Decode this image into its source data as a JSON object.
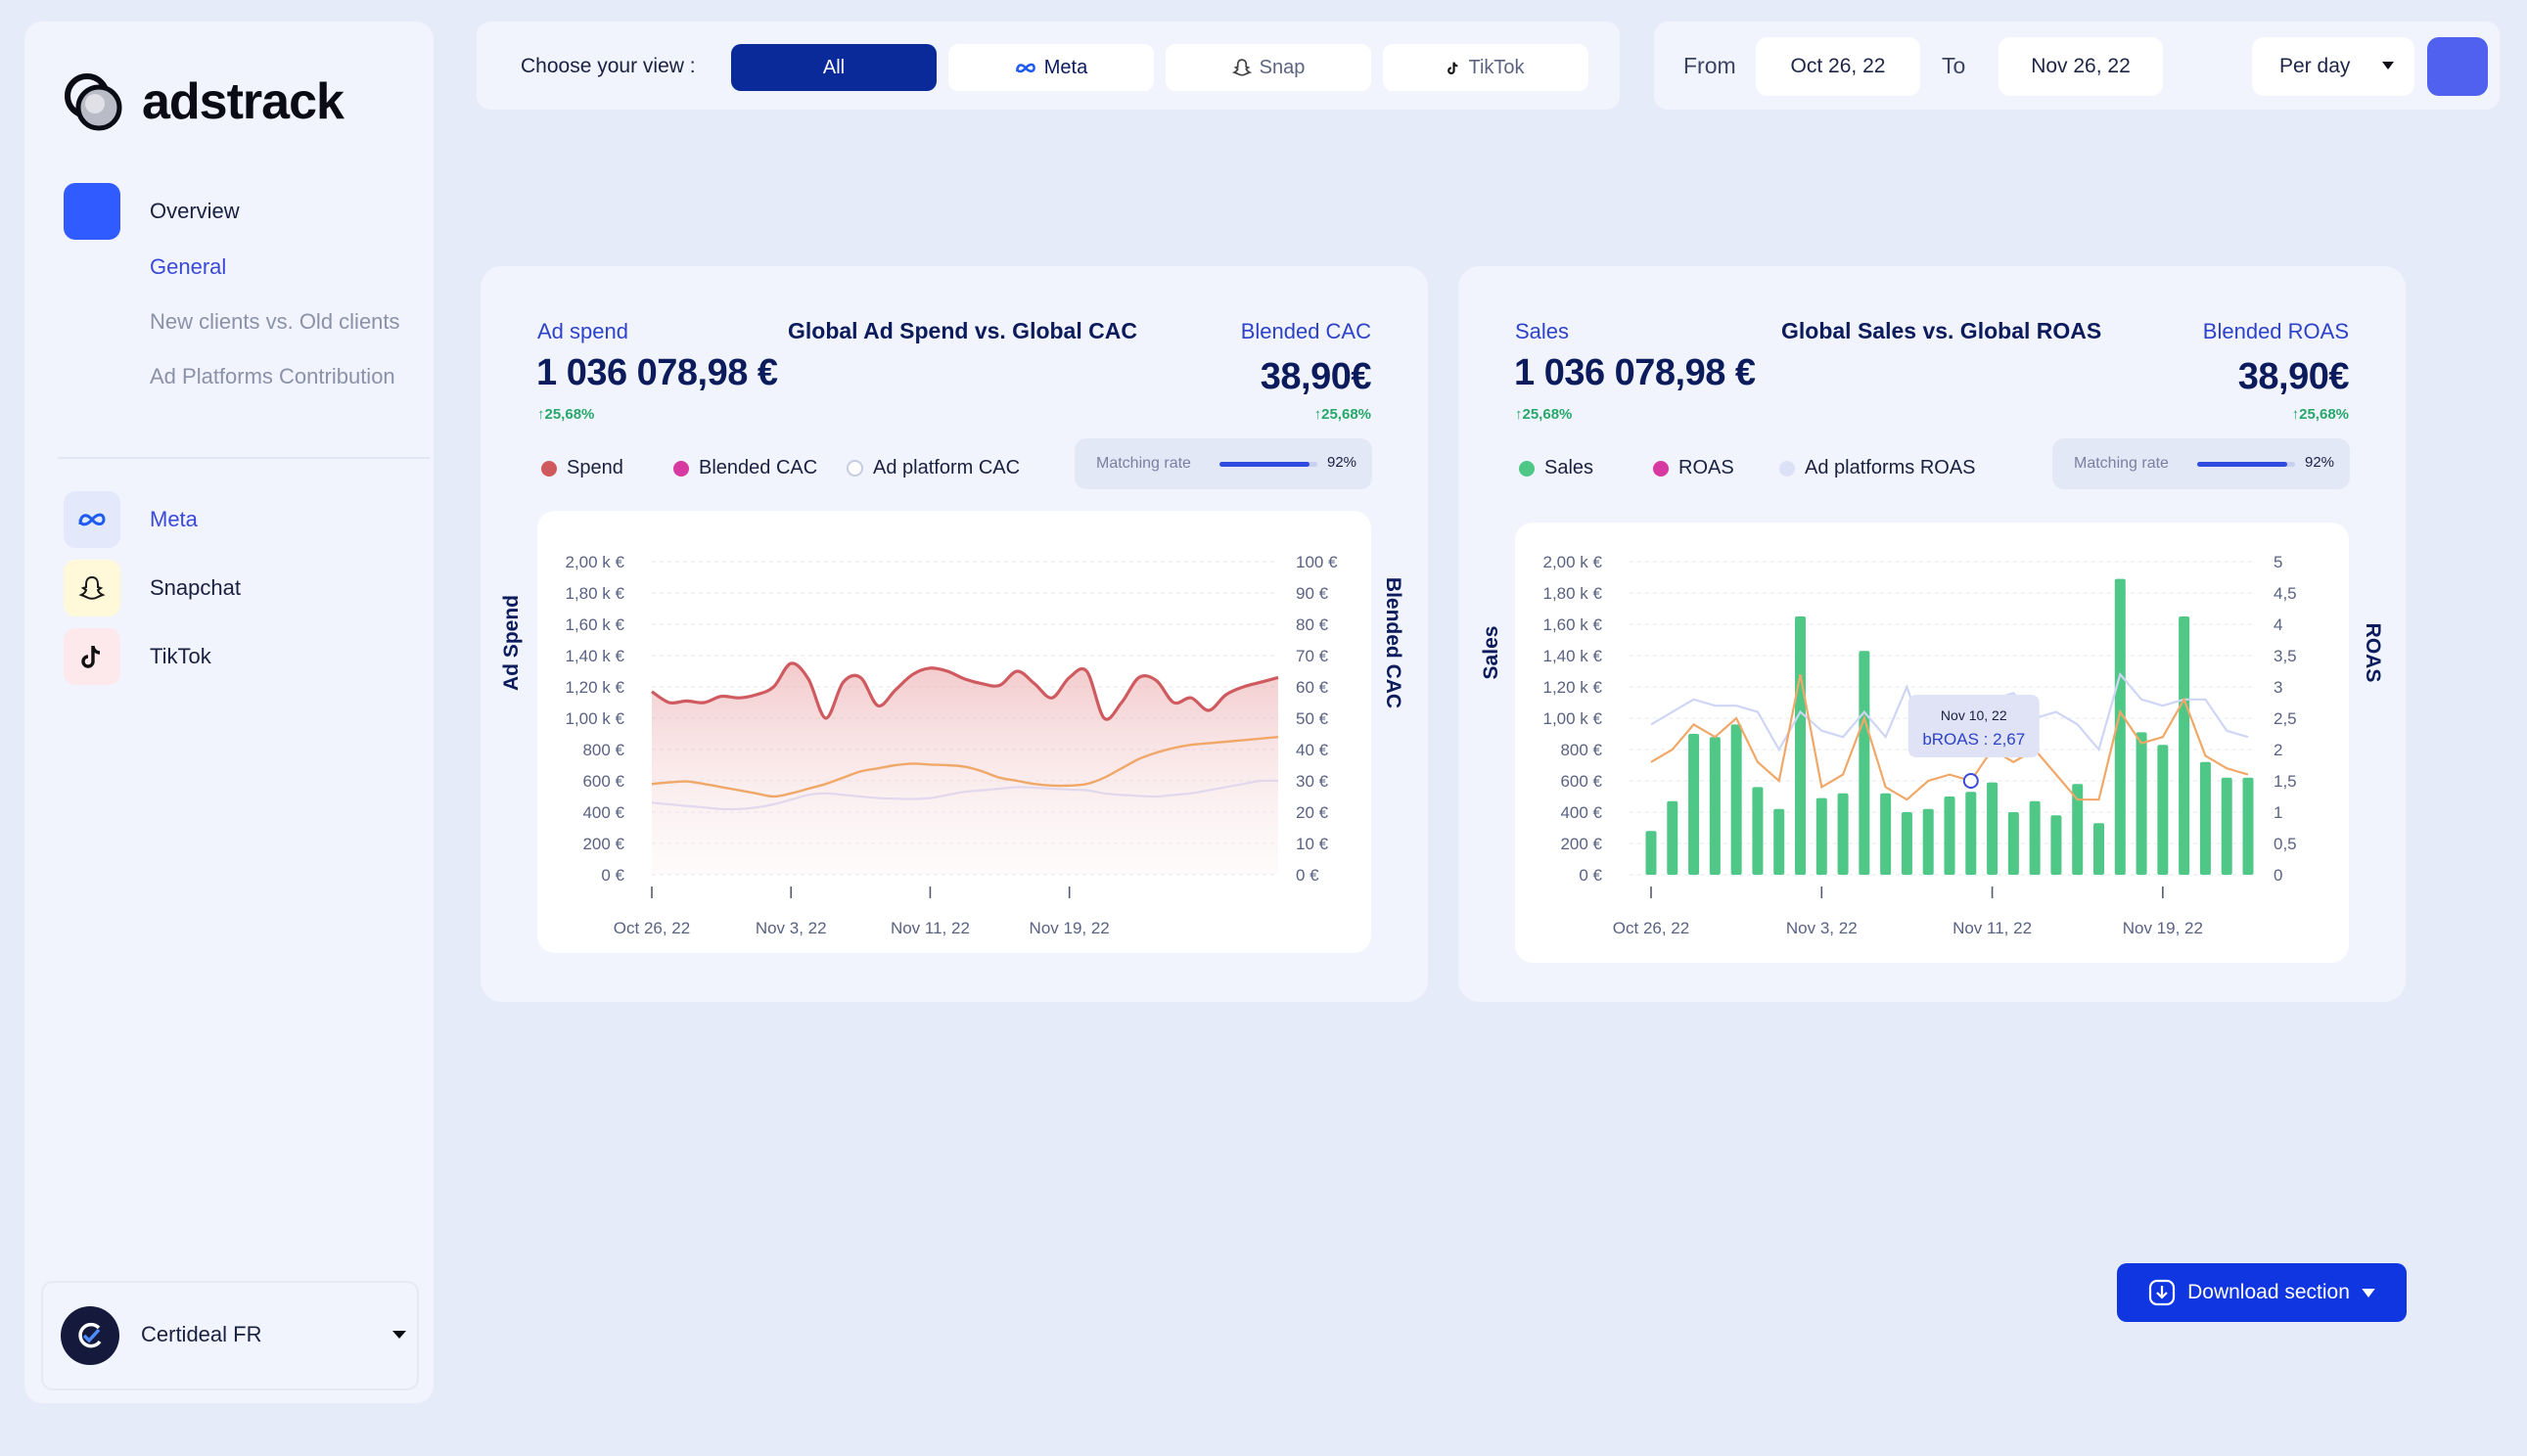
{
  "brand": {
    "name": "adstrack"
  },
  "sidebar": {
    "overview_label": "Overview",
    "sub_items": [
      "General",
      "New clients vs. Old clients",
      "Ad Platforms Contribution"
    ],
    "platforms": [
      {
        "label": "Meta",
        "icon": "meta-icon"
      },
      {
        "label": "Snapchat",
        "icon": "snapchat-icon"
      },
      {
        "label": "TikTok",
        "icon": "tiktok-icon"
      }
    ],
    "account": {
      "name": "Certideal FR"
    }
  },
  "viewbar": {
    "label": "Choose your view :",
    "options": [
      "All",
      "Meta",
      "Snap",
      "TikTok"
    ],
    "selected": "All"
  },
  "datebar": {
    "from_label": "From",
    "from_value": "Oct 26, 22",
    "to_label": "To",
    "to_value": "Nov 26, 22",
    "granularity": "Per day"
  },
  "cards": {
    "left": {
      "left_label": "Ad spend",
      "left_value": "1 036 078,98 €",
      "left_delta": "25,68%",
      "title": "Global Ad Spend vs. Global CAC",
      "right_label": "Blended CAC",
      "right_value": "38,90€",
      "right_delta": "25,68%",
      "legend": [
        "Spend",
        "Blended CAC",
        "Ad platform CAC"
      ],
      "matching_label": "Matching rate",
      "matching_value": "92%",
      "matching_fraction": 0.92,
      "y_left_label": "Ad Spend",
      "y_right_label": "Blended CAC"
    },
    "right": {
      "left_label": "Sales",
      "left_value": "1 036 078,98 €",
      "left_delta": "25,68%",
      "title": "Global Sales vs. Global ROAS",
      "right_label": "Blended ROAS",
      "right_value": "38,90€",
      "right_delta": "25,68%",
      "legend": [
        "Sales",
        "ROAS",
        "Ad platforms ROAS"
      ],
      "matching_label": "Matching rate",
      "matching_value": "92%",
      "matching_fraction": 0.92,
      "y_left_label": "Sales",
      "y_right_label": "ROAS",
      "tooltip": {
        "date": "Nov 10, 22",
        "text": "bROAS : 2,67"
      }
    }
  },
  "download": {
    "label": "Download section"
  },
  "colors": {
    "primary": "#0a2a9a",
    "accent": "#2f5bff",
    "spend": "#d0595e",
    "orange": "#f0a868",
    "green": "#4fc787",
    "pink": "#d63aa0",
    "lavender": "#cfd5f5"
  },
  "chart_data": [
    {
      "type": "area",
      "ylim_left": [
        0,
        2000
      ],
      "ylim_right": [
        0,
        100
      ],
      "y_ticks_left": [
        "0 €",
        "200 €",
        "400 €",
        "600 €",
        "800 €",
        "1,00 k €",
        "1,20 k €",
        "1,40 k €",
        "1,60 k €",
        "1,80 k €",
        "2,00 k €"
      ],
      "y_ticks_right": [
        "0 €",
        "10 €",
        "20 €",
        "30 €",
        "40 €",
        "50 €",
        "60 €",
        "70 €",
        "80 €",
        "90 €",
        "100 €"
      ],
      "x_ticks": [
        "Oct 26, 22",
        "Nov 3, 22",
        "Nov 11, 22",
        "Nov 19, 22"
      ],
      "x_tick_index": [
        0,
        8,
        16,
        24
      ],
      "series": [
        {
          "name": "Spend",
          "axis": "left",
          "values": [
            1170,
            1100,
            1110,
            1100,
            1140,
            1130,
            1150,
            1200,
            1350,
            1250,
            1000,
            1230,
            1260,
            1080,
            1180,
            1280,
            1320,
            1300,
            1250,
            1220,
            1210,
            1300,
            1220,
            1130,
            1260,
            1300,
            1000,
            1100,
            1260,
            1240,
            1100,
            1130,
            1050,
            1150,
            1200,
            1230,
            1260
          ]
        },
        {
          "name": "Blended CAC",
          "axis": "right",
          "values": [
            29,
            29.5,
            29.8,
            29,
            28,
            27,
            26,
            25,
            26,
            27.5,
            29,
            31,
            33,
            34,
            35,
            35.5,
            35.2,
            35,
            34.5,
            33,
            31,
            30,
            29,
            28.5,
            28.5,
            29,
            31,
            34,
            37,
            39,
            40.5,
            41.5,
            42,
            42.5,
            43,
            43.5,
            44
          ]
        },
        {
          "name": "Ad platform CAC",
          "axis": "right",
          "values": [
            23,
            22.5,
            22,
            21.5,
            21,
            21,
            21.5,
            22.5,
            24,
            25.5,
            26,
            25.5,
            25,
            24.5,
            24.3,
            24.2,
            24.5,
            25.5,
            26.5,
            27,
            27.5,
            28,
            27.8,
            27.5,
            27.2,
            27,
            26,
            25.5,
            25.2,
            25,
            25.5,
            26,
            27,
            28,
            29,
            30,
            30
          ]
        }
      ]
    },
    {
      "type": "bar",
      "ylim_left": [
        0,
        2000
      ],
      "ylim_right": [
        0,
        5
      ],
      "y_ticks_left": [
        "0 €",
        "200 €",
        "400 €",
        "600 €",
        "800 €",
        "1,00 k €",
        "1,20 k €",
        "1,40 k €",
        "1,60 k €",
        "1,80 k €",
        "2,00 k €"
      ],
      "y_ticks_right": [
        "0",
        "0,5",
        "1",
        "1,5",
        "2",
        "2,5",
        "3",
        "3,5",
        "4",
        "4,5",
        "5"
      ],
      "x_ticks": [
        "Oct 26, 22",
        "Nov 3, 22",
        "Nov 11, 22",
        "Nov 19, 22"
      ],
      "x_tick_index": [
        0,
        8,
        16,
        24
      ],
      "series": [
        {
          "name": "Sales",
          "axis": "left",
          "values": [
            280,
            470,
            900,
            880,
            960,
            560,
            420,
            1650,
            490,
            520,
            1430,
            520,
            400,
            420,
            500,
            530,
            590,
            400,
            470,
            380,
            580,
            330,
            1890,
            910,
            830,
            1650,
            720,
            620,
            620
          ]
        },
        {
          "name": "ROAS",
          "axis": "right",
          "values": [
            1.8,
            2.0,
            2.4,
            2.2,
            2.5,
            1.8,
            1.5,
            3.2,
            1.4,
            1.6,
            2.5,
            1.4,
            1.2,
            1.5,
            1.6,
            1.5,
            2.0,
            1.8,
            2.0,
            1.6,
            1.2,
            1.2,
            2.6,
            2.1,
            2.2,
            2.8,
            1.9,
            1.7,
            1.6
          ]
        },
        {
          "name": "Ad platforms ROAS",
          "axis": "right",
          "values": [
            2.4,
            2.6,
            2.8,
            2.7,
            2.7,
            2.6,
            2.0,
            2.6,
            2.3,
            2.2,
            2.6,
            2.2,
            3.0,
            2.0,
            2.3,
            2.4,
            2.8,
            2.9,
            2.5,
            2.6,
            2.4,
            2.0,
            3.2,
            2.8,
            2.7,
            2.8,
            2.8,
            2.3,
            2.2
          ]
        }
      ]
    }
  ]
}
